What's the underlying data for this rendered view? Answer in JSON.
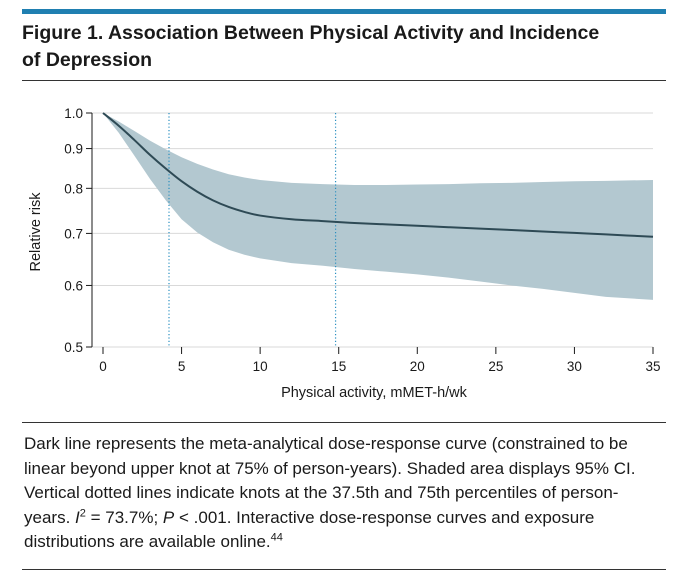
{
  "figure": {
    "title_line1": "Figure 1. Association Between Physical Activity and Incidence",
    "title_line2": "of Depression"
  },
  "chart_data": {
    "type": "line",
    "xlabel": "Physical activity, mMET-h/wk",
    "ylabel": "Relative risk",
    "xlim": [
      0,
      35
    ],
    "ylim": [
      0.5,
      1.0
    ],
    "y_scale": "log",
    "x_ticks": [
      0,
      5,
      10,
      15,
      20,
      25,
      30,
      35
    ],
    "y_ticks": [
      0.5,
      0.6,
      0.7,
      0.8,
      0.9,
      1.0
    ],
    "y_tick_labels": [
      "0.5",
      "0.6",
      "0.7",
      "0.8",
      "0.9",
      "1.0"
    ],
    "grid": "horizontal",
    "series": [
      {
        "x": [
          0,
          1,
          2,
          3,
          4,
          5,
          6,
          7,
          8,
          9,
          10,
          12,
          14,
          16,
          18,
          20,
          22,
          24,
          26,
          28,
          30,
          32,
          35
        ],
        "y": [
          1.0,
          0.963,
          0.923,
          0.883,
          0.848,
          0.817,
          0.792,
          0.772,
          0.757,
          0.746,
          0.738,
          0.73,
          0.726,
          0.722,
          0.719,
          0.716,
          0.713,
          0.71,
          0.707,
          0.704,
          0.701,
          0.698,
          0.693
        ],
        "ci_lower": [
          1.0,
          0.943,
          0.881,
          0.822,
          0.772,
          0.73,
          0.702,
          0.682,
          0.667,
          0.657,
          0.65,
          0.641,
          0.636,
          0.63,
          0.625,
          0.62,
          0.614,
          0.607,
          0.6,
          0.594,
          0.587,
          0.58,
          0.575
        ],
        "ci_upper": [
          1.0,
          0.975,
          0.948,
          0.921,
          0.898,
          0.877,
          0.86,
          0.846,
          0.834,
          0.826,
          0.82,
          0.813,
          0.81,
          0.808,
          0.808,
          0.809,
          0.81,
          0.812,
          0.813,
          0.815,
          0.817,
          0.818,
          0.82
        ]
      }
    ],
    "knots": [
      4.2,
      14.8
    ],
    "colors": {
      "curve": "#2e4a55",
      "ci_band": "#b3c8d0",
      "knot_line": "#2a8fc0",
      "grid": "#d9d9d9"
    }
  },
  "caption": {
    "text1": "Dark line represents the meta-analytical dose-response curve (constrained to be linear beyond upper knot at 75% of person-years). Shaded area displays 95% CI. Vertical dotted lines indicate knots at the 37.5th and 75th percentiles of person-years. ",
    "i_letter": "I",
    "sup2": "2",
    "text2": " = 73.7%; ",
    "p_letter": "P",
    "text3": " < .001. Interactive dose-response curves and exposure distributions are available online.",
    "ref": "44"
  }
}
